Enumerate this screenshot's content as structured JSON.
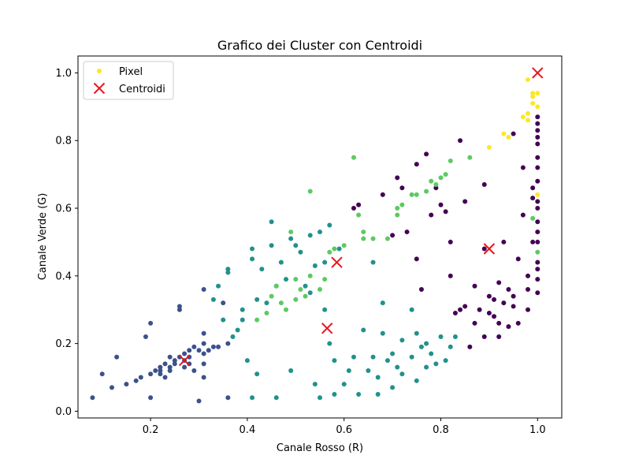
{
  "chart_data": {
    "type": "scatter",
    "title": "Grafico dei Cluster con Centroidi",
    "xlabel": "Canale Rosso (R)",
    "ylabel": "Canale Verde (G)",
    "xlim": [
      0.05,
      1.05
    ],
    "ylim": [
      -0.02,
      1.05
    ],
    "xticks": [
      "0.2",
      "0.4",
      "0.6",
      "0.8",
      "1.0"
    ],
    "yticks": [
      "0.0",
      "0.2",
      "0.4",
      "0.6",
      "0.8",
      "1.0"
    ],
    "xtick_values": [
      0.2,
      0.4,
      0.6,
      0.8,
      1.0
    ],
    "ytick_values": [
      0.0,
      0.2,
      0.4,
      0.6,
      0.8,
      1.0
    ],
    "grid": false,
    "legend": {
      "placement": "top-left",
      "entries": [
        {
          "label": "Pixel",
          "marker": "dot",
          "color": "#fde725"
        },
        {
          "label": "Centroidi",
          "marker": "x",
          "color": "#e8141c"
        }
      ]
    },
    "colors": {
      "cluster_0": "#440154",
      "cluster_1": "#3b528b",
      "cluster_2": "#21918c",
      "cluster_3": "#5ec962",
      "cluster_4": "#fde725",
      "centroid": "#e8141c"
    },
    "clusters": [
      {
        "id": 0,
        "color": "#440154",
        "points": [
          [
            0.62,
            0.6
          ],
          [
            0.63,
            0.61
          ],
          [
            0.68,
            0.64
          ],
          [
            0.7,
            0.52
          ],
          [
            0.71,
            0.69
          ],
          [
            0.72,
            0.66
          ],
          [
            0.73,
            0.53
          ],
          [
            0.75,
            0.73
          ],
          [
            0.75,
            0.45
          ],
          [
            0.76,
            0.36
          ],
          [
            0.77,
            0.76
          ],
          [
            0.78,
            0.58
          ],
          [
            0.79,
            0.66
          ],
          [
            0.8,
            0.61
          ],
          [
            0.81,
            0.59
          ],
          [
            0.82,
            0.4
          ],
          [
            0.82,
            0.5
          ],
          [
            0.83,
            0.29
          ],
          [
            0.84,
            0.8
          ],
          [
            0.84,
            0.3
          ],
          [
            0.85,
            0.62
          ],
          [
            0.85,
            0.31
          ],
          [
            0.86,
            0.19
          ],
          [
            0.87,
            0.26
          ],
          [
            0.87,
            0.37
          ],
          [
            0.88,
            0.3
          ],
          [
            0.89,
            0.22
          ],
          [
            0.89,
            0.67
          ],
          [
            0.89,
            0.48
          ],
          [
            0.9,
            0.29
          ],
          [
            0.9,
            0.34
          ],
          [
            0.91,
            0.33
          ],
          [
            0.91,
            0.28
          ],
          [
            0.92,
            0.38
          ],
          [
            0.92,
            0.22
          ],
          [
            0.93,
            0.32
          ],
          [
            0.93,
            0.5
          ],
          [
            0.94,
            0.25
          ],
          [
            0.94,
            0.36
          ],
          [
            0.95,
            0.82
          ],
          [
            0.95,
            0.34
          ],
          [
            0.96,
            0.26
          ],
          [
            0.96,
            0.45
          ],
          [
            0.97,
            0.72
          ],
          [
            0.97,
            0.58
          ],
          [
            0.98,
            0.4
          ],
          [
            0.98,
            0.36
          ],
          [
            0.99,
            0.63
          ],
          [
            0.99,
            0.66
          ],
          [
            0.99,
            0.5
          ],
          [
            1.0,
            0.35
          ],
          [
            1.0,
            0.39
          ],
          [
            1.0,
            0.42
          ],
          [
            1.0,
            0.44
          ],
          [
            1.0,
            0.5
          ],
          [
            1.0,
            0.53
          ],
          [
            1.0,
            0.56
          ],
          [
            1.0,
            0.6
          ],
          [
            1.0,
            0.62
          ],
          [
            1.0,
            0.68
          ],
          [
            1.0,
            0.72
          ],
          [
            1.0,
            0.75
          ],
          [
            1.0,
            0.79
          ],
          [
            1.0,
            0.81
          ],
          [
            1.0,
            0.83
          ],
          [
            1.0,
            0.85
          ],
          [
            1.0,
            0.87
          ],
          [
            0.98,
            0.3
          ],
          [
            0.92,
            0.26
          ],
          [
            0.95,
            0.31
          ]
        ]
      },
      {
        "id": 1,
        "color": "#3b528b",
        "points": [
          [
            0.08,
            0.04
          ],
          [
            0.1,
            0.11
          ],
          [
            0.12,
            0.07
          ],
          [
            0.13,
            0.16
          ],
          [
            0.15,
            0.08
          ],
          [
            0.17,
            0.09
          ],
          [
            0.18,
            0.1
          ],
          [
            0.19,
            0.22
          ],
          [
            0.2,
            0.11
          ],
          [
            0.2,
            0.26
          ],
          [
            0.2,
            0.04
          ],
          [
            0.21,
            0.12
          ],
          [
            0.22,
            0.13
          ],
          [
            0.22,
            0.11
          ],
          [
            0.23,
            0.14
          ],
          [
            0.24,
            0.13
          ],
          [
            0.24,
            0.12
          ],
          [
            0.25,
            0.15
          ],
          [
            0.25,
            0.14
          ],
          [
            0.26,
            0.16
          ],
          [
            0.26,
            0.3
          ],
          [
            0.26,
            0.31
          ],
          [
            0.27,
            0.15
          ],
          [
            0.27,
            0.17
          ],
          [
            0.28,
            0.18
          ],
          [
            0.28,
            0.16
          ],
          [
            0.29,
            0.19
          ],
          [
            0.29,
            0.12
          ],
          [
            0.3,
            0.18
          ],
          [
            0.3,
            0.03
          ],
          [
            0.31,
            0.17
          ],
          [
            0.31,
            0.2
          ],
          [
            0.31,
            0.36
          ],
          [
            0.31,
            0.1
          ],
          [
            0.31,
            0.14
          ],
          [
            0.31,
            0.23
          ],
          [
            0.32,
            0.18
          ],
          [
            0.33,
            0.19
          ],
          [
            0.34,
            0.19
          ],
          [
            0.35,
            0.32
          ],
          [
            0.36,
            0.2
          ],
          [
            0.36,
            0.04
          ],
          [
            0.23,
            0.1
          ],
          [
            0.27,
            0.13
          ],
          [
            0.22,
            0.12
          ],
          [
            0.24,
            0.16
          ],
          [
            0.28,
            0.14
          ]
        ]
      },
      {
        "id": 2,
        "color": "#21918c",
        "points": [
          [
            0.33,
            0.33
          ],
          [
            0.34,
            0.37
          ],
          [
            0.35,
            0.27
          ],
          [
            0.36,
            0.41
          ],
          [
            0.36,
            0.42
          ],
          [
            0.37,
            0.22
          ],
          [
            0.38,
            0.24
          ],
          [
            0.39,
            0.3
          ],
          [
            0.39,
            0.27
          ],
          [
            0.4,
            0.15
          ],
          [
            0.41,
            0.45
          ],
          [
            0.41,
            0.48
          ],
          [
            0.41,
            0.04
          ],
          [
            0.42,
            0.33
          ],
          [
            0.42,
            0.11
          ],
          [
            0.43,
            0.42
          ],
          [
            0.44,
            0.32
          ],
          [
            0.45,
            0.49
          ],
          [
            0.45,
            0.56
          ],
          [
            0.46,
            0.04
          ],
          [
            0.46,
            0.37
          ],
          [
            0.47,
            0.44
          ],
          [
            0.48,
            0.39
          ],
          [
            0.49,
            0.12
          ],
          [
            0.49,
            0.51
          ],
          [
            0.5,
            0.49
          ],
          [
            0.51,
            0.47
          ],
          [
            0.52,
            0.37
          ],
          [
            0.53,
            0.52
          ],
          [
            0.53,
            0.35
          ],
          [
            0.54,
            0.08
          ],
          [
            0.54,
            0.43
          ],
          [
            0.55,
            0.53
          ],
          [
            0.55,
            0.04
          ],
          [
            0.56,
            0.44
          ],
          [
            0.56,
            0.3
          ],
          [
            0.57,
            0.55
          ],
          [
            0.57,
            0.2
          ],
          [
            0.58,
            0.15
          ],
          [
            0.58,
            0.05
          ],
          [
            0.59,
            0.48
          ],
          [
            0.6,
            0.08
          ],
          [
            0.61,
            0.12
          ],
          [
            0.62,
            0.16
          ],
          [
            0.63,
            0.05
          ],
          [
            0.64,
            0.24
          ],
          [
            0.65,
            0.12
          ],
          [
            0.66,
            0.44
          ],
          [
            0.66,
            0.16
          ],
          [
            0.67,
            0.1
          ],
          [
            0.67,
            0.05
          ],
          [
            0.68,
            0.23
          ],
          [
            0.68,
            0.32
          ],
          [
            0.69,
            0.15
          ],
          [
            0.7,
            0.07
          ],
          [
            0.7,
            0.17
          ],
          [
            0.71,
            0.13
          ],
          [
            0.72,
            0.11
          ],
          [
            0.72,
            0.21
          ],
          [
            0.74,
            0.3
          ],
          [
            0.74,
            0.16
          ],
          [
            0.75,
            0.09
          ],
          [
            0.75,
            0.23
          ],
          [
            0.76,
            0.19
          ],
          [
            0.77,
            0.2
          ],
          [
            0.77,
            0.13
          ],
          [
            0.78,
            0.17
          ],
          [
            0.79,
            0.14
          ],
          [
            0.8,
            0.22
          ],
          [
            0.81,
            0.15
          ],
          [
            0.82,
            0.19
          ],
          [
            0.83,
            0.22
          ]
        ]
      },
      {
        "id": 3,
        "color": "#5ec962",
        "points": [
          [
            0.42,
            0.27
          ],
          [
            0.44,
            0.29
          ],
          [
            0.45,
            0.34
          ],
          [
            0.46,
            0.37
          ],
          [
            0.47,
            0.32
          ],
          [
            0.48,
            0.3
          ],
          [
            0.49,
            0.53
          ],
          [
            0.5,
            0.39
          ],
          [
            0.5,
            0.33
          ],
          [
            0.51,
            0.36
          ],
          [
            0.52,
            0.34
          ],
          [
            0.53,
            0.65
          ],
          [
            0.53,
            0.4
          ],
          [
            0.55,
            0.36
          ],
          [
            0.56,
            0.39
          ],
          [
            0.57,
            0.47
          ],
          [
            0.58,
            0.48
          ],
          [
            0.6,
            0.49
          ],
          [
            0.62,
            0.75
          ],
          [
            0.63,
            0.58
          ],
          [
            0.64,
            0.53
          ],
          [
            0.64,
            0.51
          ],
          [
            0.66,
            0.51
          ],
          [
            0.69,
            0.51
          ],
          [
            0.71,
            0.6
          ],
          [
            0.72,
            0.61
          ],
          [
            0.74,
            0.64
          ],
          [
            0.75,
            0.64
          ],
          [
            0.77,
            0.65
          ],
          [
            0.78,
            0.68
          ],
          [
            0.79,
            0.67
          ],
          [
            0.8,
            0.69
          ],
          [
            0.81,
            0.7
          ],
          [
            0.82,
            0.74
          ],
          [
            0.86,
            0.75
          ],
          [
            0.99,
            0.57
          ],
          [
            1.0,
            0.47
          ],
          [
            0.71,
            0.58
          ]
        ]
      },
      {
        "id": 4,
        "color": "#fde725",
        "points": [
          [
            0.9,
            0.78
          ],
          [
            0.93,
            0.82
          ],
          [
            0.94,
            0.81
          ],
          [
            0.97,
            0.87
          ],
          [
            0.98,
            0.88
          ],
          [
            0.98,
            0.98
          ],
          [
            0.99,
            0.94
          ],
          [
            0.99,
            0.93
          ],
          [
            0.99,
            0.91
          ],
          [
            1.0,
            0.94
          ],
          [
            1.0,
            0.9
          ],
          [
            1.0,
            0.64
          ],
          [
            0.98,
            0.86
          ]
        ]
      }
    ],
    "centroids": [
      {
        "x": 0.27,
        "y": 0.15
      },
      {
        "x": 0.565,
        "y": 0.245
      },
      {
        "x": 0.585,
        "y": 0.44
      },
      {
        "x": 0.9,
        "y": 0.48
      },
      {
        "x": 1.0,
        "y": 1.0
      }
    ]
  }
}
